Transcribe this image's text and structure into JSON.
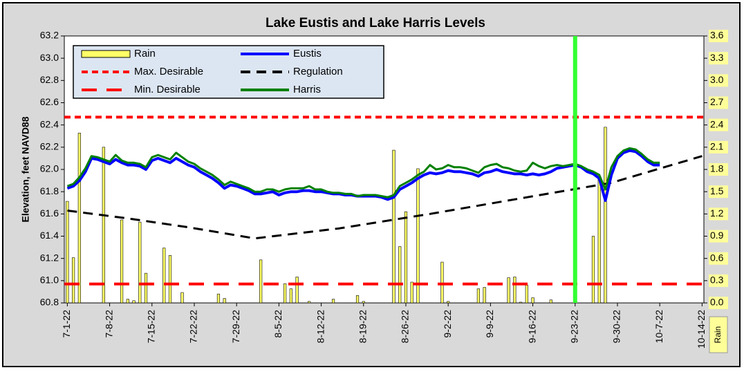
{
  "chart_data": {
    "type": "combo",
    "title": "Lake Eustis and Lake Harris Levels",
    "y_label": "Elevation, feet NAVD88",
    "y2_label": "Rain",
    "xlim": [
      -0.5,
      105.3
    ],
    "xticks": [
      {
        "value": 0,
        "label": "7-1-22"
      },
      {
        "value": 7,
        "label": "7-8-22"
      },
      {
        "value": 14,
        "label": "7-15-22"
      },
      {
        "value": 21,
        "label": "7-22-22"
      },
      {
        "value": 28,
        "label": "7-29-22"
      },
      {
        "value": 35,
        "label": "8-5-22"
      },
      {
        "value": 42,
        "label": "8-12-22"
      },
      {
        "value": 49,
        "label": "8-19-22"
      },
      {
        "value": 56,
        "label": "8-26-22"
      },
      {
        "value": 63,
        "label": "9-2-22"
      },
      {
        "value": 70,
        "label": "9-9-22"
      },
      {
        "value": 77,
        "label": "9-16-22"
      },
      {
        "value": 84,
        "label": "9-23-22"
      },
      {
        "value": 91,
        "label": "9-30-22"
      },
      {
        "value": 98,
        "label": "10-7-22"
      },
      {
        "value": 105,
        "label": "10-14-22"
      }
    ],
    "ylim": [
      60.8,
      63.2
    ],
    "yticks": [
      60.8,
      {
        "value": 61.0,
        "label": "61.0"
      },
      61.2,
      61.4,
      61.6,
      61.8,
      {
        "value": 62.0,
        "label": "62.0"
      },
      62.2,
      62.4,
      62.6,
      62.8,
      {
        "value": 63.0,
        "label": "63.0"
      },
      63.2
    ],
    "y2lim": [
      0,
      3.6
    ],
    "y2ticks": [
      {
        "value": 0,
        "label": "0.0"
      },
      0.3,
      0.6,
      0.9,
      1.2,
      1.5,
      1.8,
      2.1,
      2.4,
      2.7,
      {
        "value": 3,
        "label": "3.0"
      },
      3.3,
      3.6
    ],
    "vline": {
      "x": 84,
      "color": "#33ff33"
    },
    "series": [
      {
        "name": "Rain",
        "type": "bar",
        "axis": "y2",
        "color": "#ffff66",
        "x": [
          0,
          1,
          2,
          6,
          9,
          10,
          11,
          12,
          13,
          16,
          17,
          19,
          25,
          26,
          32,
          36,
          37,
          38,
          40,
          44,
          48,
          49,
          54,
          55,
          56,
          57,
          58,
          62,
          63,
          68,
          69,
          73,
          74,
          75,
          76,
          77,
          80,
          87,
          88,
          89
        ],
        "values": [
          1.37,
          0.61,
          2.29,
          2.1,
          1.12,
          0.05,
          0.03,
          1.09,
          0.4,
          0.74,
          0.64,
          0.14,
          0.12,
          0.06,
          0.58,
          0.26,
          0.19,
          0.35,
          0.02,
          0.05,
          0.1,
          0.02,
          2.06,
          0.76,
          1.23,
          0.28,
          1.81,
          0.55,
          0.02,
          0.19,
          0.21,
          0.34,
          0.35,
          0.01,
          0.24,
          0.07,
          0.04,
          0.9,
          1.71,
          2.37
        ]
      },
      {
        "name": "Eustis",
        "type": "line",
        "color": "#0000ff",
        "x": [
          0,
          1,
          2,
          3,
          4,
          5,
          6,
          7,
          8,
          9,
          10,
          11,
          12,
          13,
          14,
          15,
          16,
          17,
          18,
          19,
          20,
          21,
          22,
          23,
          24,
          25,
          26,
          27,
          28,
          29,
          30,
          31,
          32,
          33,
          34,
          35,
          36,
          37,
          38,
          39,
          40,
          41,
          42,
          43,
          44,
          45,
          46,
          47,
          48,
          49,
          50,
          51,
          52,
          53,
          54,
          55,
          56,
          57,
          58,
          59,
          60,
          61,
          62,
          63,
          64,
          65,
          66,
          67,
          68,
          69,
          70,
          71,
          72,
          73,
          74,
          75,
          76,
          77,
          78,
          79,
          80,
          81,
          82,
          83,
          84,
          85,
          86,
          87,
          88,
          89,
          90,
          91,
          92,
          93,
          94,
          95,
          96,
          97,
          98
        ],
        "values": [
          61.83,
          61.85,
          61.9,
          61.98,
          62.1,
          62.09,
          62.07,
          62.05,
          62.09,
          62.06,
          62.04,
          62.04,
          62.03,
          62.0,
          62.08,
          62.1,
          62.08,
          62.06,
          62.1,
          62.07,
          62.04,
          62.02,
          61.98,
          61.95,
          61.92,
          61.88,
          61.83,
          61.86,
          61.85,
          61.83,
          61.81,
          61.78,
          61.78,
          61.79,
          61.8,
          61.77,
          61.79,
          61.8,
          61.8,
          61.81,
          61.81,
          61.8,
          61.8,
          61.79,
          61.78,
          61.78,
          61.77,
          61.77,
          61.76,
          61.76,
          61.76,
          61.76,
          61.75,
          61.73,
          61.75,
          61.82,
          61.85,
          61.88,
          61.92,
          61.95,
          61.97,
          61.96,
          61.97,
          61.99,
          61.98,
          61.98,
          61.97,
          61.96,
          61.94,
          61.97,
          61.98,
          62.0,
          61.98,
          61.97,
          61.96,
          61.96,
          61.95,
          61.96,
          61.95,
          61.96,
          61.98,
          62.01,
          62.02,
          62.03,
          62.04,
          62.02,
          61.98,
          61.96,
          61.92,
          61.72,
          61.95,
          62.1,
          62.15,
          62.17,
          62.16,
          62.12,
          62.07,
          62.04,
          62.04
        ]
      },
      {
        "name": "Max. Desirable",
        "type": "hline",
        "style": "short",
        "color": "#ff0000",
        "values": [
          62.47
        ]
      },
      {
        "name": "Regulation",
        "type": "line",
        "style": "dash",
        "color": "#000000",
        "x": [
          0,
          10,
          20,
          31,
          45,
          60,
          75,
          90,
          105
        ],
        "values": [
          61.63,
          61.56,
          61.48,
          61.38,
          61.47,
          61.6,
          61.74,
          61.88,
          62.12
        ]
      },
      {
        "name": "Min. Desirable",
        "type": "hline",
        "style": "long",
        "color": "#ff0000",
        "values": [
          60.97
        ]
      },
      {
        "name": "Harris",
        "type": "line",
        "color": "#008000",
        "x": [
          0,
          1,
          2,
          3,
          4,
          5,
          6,
          7,
          8,
          9,
          10,
          11,
          12,
          13,
          14,
          15,
          16,
          17,
          18,
          19,
          20,
          21,
          22,
          23,
          24,
          25,
          26,
          27,
          28,
          29,
          30,
          31,
          32,
          33,
          34,
          35,
          36,
          37,
          38,
          39,
          40,
          41,
          42,
          43,
          44,
          45,
          46,
          47,
          48,
          49,
          50,
          51,
          52,
          53,
          54,
          55,
          56,
          57,
          58,
          59,
          60,
          61,
          62,
          63,
          64,
          65,
          66,
          67,
          68,
          69,
          70,
          71,
          72,
          73,
          74,
          75,
          76,
          77,
          78,
          79,
          80,
          81,
          82,
          83,
          84,
          85,
          86,
          87,
          88,
          89,
          90,
          91,
          92,
          93,
          94,
          95,
          96,
          97,
          98
        ],
        "values": [
          61.85,
          61.87,
          61.93,
          62.01,
          62.12,
          62.11,
          62.09,
          62.07,
          62.13,
          62.08,
          62.06,
          62.06,
          62.05,
          62.02,
          62.11,
          62.13,
          62.11,
          62.09,
          62.15,
          62.11,
          62.07,
          62.05,
          62.01,
          61.98,
          61.95,
          61.91,
          61.86,
          61.89,
          61.87,
          61.85,
          61.83,
          61.8,
          61.8,
          61.82,
          61.82,
          61.8,
          61.82,
          61.83,
          61.83,
          61.83,
          61.85,
          61.82,
          61.82,
          61.8,
          61.79,
          61.79,
          61.78,
          61.78,
          61.76,
          61.77,
          61.77,
          61.77,
          61.76,
          61.75,
          61.77,
          61.85,
          61.88,
          61.91,
          61.95,
          61.98,
          62.04,
          62.0,
          62.01,
          62.04,
          62.02,
          62.02,
          62.01,
          61.99,
          61.97,
          62.02,
          62.04,
          62.05,
          62.02,
          62.01,
          61.99,
          61.98,
          61.99,
          62.06,
          62.03,
          62.01,
          62.03,
          62.04,
          62.03,
          62.04,
          62.05,
          62.03,
          62.0,
          61.98,
          61.95,
          61.82,
          62.02,
          62.12,
          62.17,
          62.19,
          62.18,
          62.14,
          62.09,
          62.06,
          62.06
        ]
      }
    ]
  }
}
